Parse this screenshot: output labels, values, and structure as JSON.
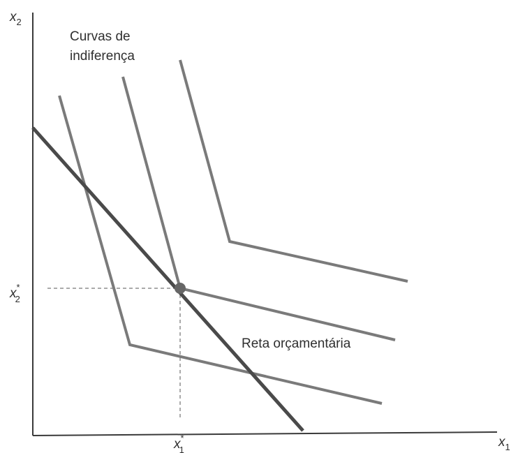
{
  "labels": {
    "y_axis": "x",
    "y_axis_sub": "2",
    "x_axis": "x",
    "x_axis_sub": "1",
    "x2_star": "x",
    "x2_star_sub": "2",
    "x2_star_sup": "*",
    "x1_star": "x",
    "x1_star_sub": "1",
    "x1_star_sup": "*",
    "indifference_line1": "Curvas de",
    "indifference_line2": "indiferença",
    "budget_line": "Reta orçamentária"
  },
  "colors": {
    "budget_line": "#4a4a4a",
    "indifference_curves": "#7a7a7a",
    "axes": "#3a3a3a",
    "optimum_point": "#666666"
  }
}
